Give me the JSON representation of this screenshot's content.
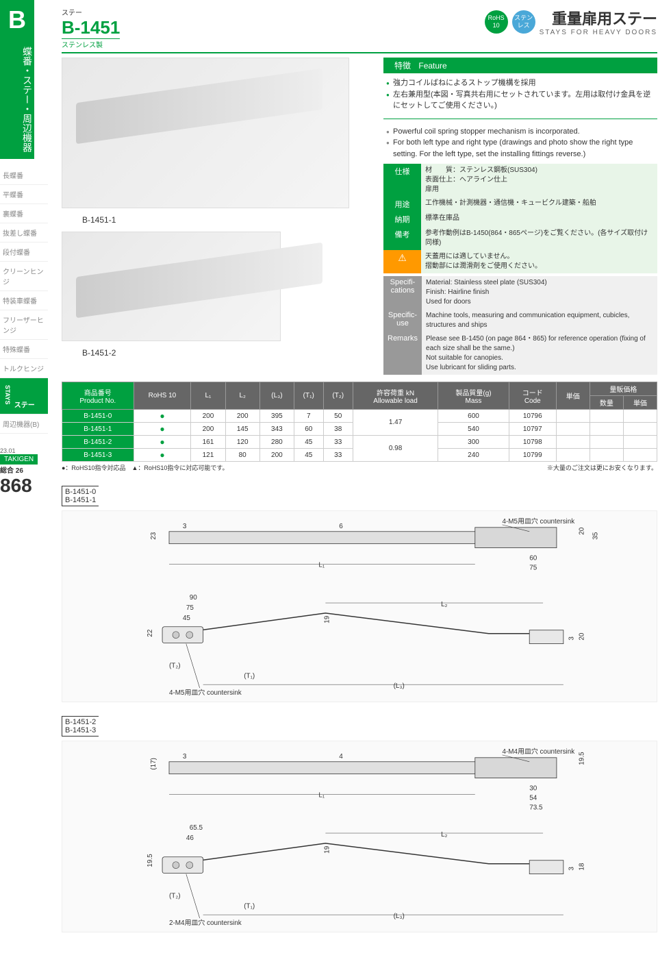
{
  "sidebar": {
    "tab": "B",
    "category_jp": "蝶番・ステー・周辺機器",
    "items": [
      "長蝶番",
      "平蝶番",
      "裏蝶番",
      "抜差し蝶番",
      "段付蝶番",
      "クリーンヒンジ",
      "特装車蝶番",
      "フリーザーヒンジ",
      "特殊蝶番",
      "トルクヒンジ",
      "ステー",
      "周辺機器(B)"
    ],
    "active_index": 10,
    "stays_en": "STAYS"
  },
  "header": {
    "small_jp": "ステー",
    "code": "B-1451",
    "material_jp": "ステンレス製",
    "badge_rohs": "RoHS 10",
    "badge_steel": "ステンレス",
    "title_jp": "重量扉用ステー",
    "title_en": "STAYS FOR HEAVY DOORS"
  },
  "feature": {
    "bar_jp": "特徴",
    "bar_en": "Feature",
    "jp": [
      "強力コイルばねによるストップ機構を採用",
      "左右兼用型(本図・写真共右用にセットされています。左用は取付け金具を逆にセットしてご使用ください。)"
    ],
    "en": [
      "Powerful coil spring stopper mechanism is incorporated.",
      "For both left type and right type (drawings and photo show the right type setting. For the left type, set the installing fittings reverse.)"
    ]
  },
  "specs_jp": {
    "rows": [
      {
        "label": "仕様",
        "text": "材　　質：ステンレス鋼板(SUS304)\n表面仕上：ヘアライン仕上\n扉用"
      },
      {
        "label": "用途",
        "text": "工作機械・計測機器・通信機・キュービクル建築・船舶"
      },
      {
        "label": "納期",
        "text": "標準在庫品"
      },
      {
        "label": "備考",
        "text": "参考作動例はB-1450(864・865ページ)をご覧ください。(各サイズ取付け同様)",
        "warn": true
      },
      {
        "label": "",
        "text": "天蓋用には適していません。\n摺動部には潤滑剤をご使用ください。",
        "warn_only": true
      }
    ]
  },
  "specs_en": {
    "rows": [
      {
        "label": "Specifi-cations",
        "text": "Material: Stainless steel plate (SUS304)\nFinish: Hairline finish\nUsed for doors"
      },
      {
        "label": "Specific-use",
        "text": "Machine tools, measuring and communication equipment, cubicles, structures and ships"
      },
      {
        "label": "Remarks",
        "text": "Please see B-1450 (on page 864・865) for reference operation (fixing of each size shall be the same.)\nNot suitable for canopies.\nUse lubricant for sliding parts.",
        "warn": true
      }
    ]
  },
  "product_labels": [
    "B-1451-1",
    "B-1451-2"
  ],
  "table": {
    "headers": [
      "商品番号\nProduct No.",
      "RoHS 10",
      "L₁",
      "L₂",
      "(L₃)",
      "(T₁)",
      "(T₂)",
      "許容荷重 kN\nAllowable load",
      "製品質量(g)\nMass",
      "コード\nCode",
      "単価",
      "数量",
      "単価"
    ],
    "group_header": "量販価格",
    "rows": [
      {
        "name": "B-1451-0",
        "rohs": "●",
        "l1": "200",
        "l2": "200",
        "l3": "395",
        "t1": "7",
        "t2": "50",
        "load": "1.47",
        "mass": "600",
        "code": "10796"
      },
      {
        "name": "B-1451-1",
        "rohs": "●",
        "l1": "200",
        "l2": "145",
        "l3": "343",
        "t1": "60",
        "t2": "38",
        "load": "",
        "mass": "540",
        "code": "10797"
      },
      {
        "name": "B-1451-2",
        "rohs": "●",
        "l1": "161",
        "l2": "120",
        "l3": "280",
        "t1": "45",
        "t2": "33",
        "load": "0.98",
        "mass": "300",
        "code": "10798"
      },
      {
        "name": "B-1451-3",
        "rohs": "●",
        "l1": "121",
        "l2": "80",
        "l3": "200",
        "t1": "45",
        "t2": "33",
        "load": "",
        "mass": "240",
        "code": "10799"
      }
    ],
    "note_left": "●：RoHS10指令対応品　▲：RoHS10指令に対応可能です。",
    "note_right": "※大量のご注文は更にお安くなります。"
  },
  "drawings": [
    {
      "labels": [
        "B-1451-0",
        "B-1451-1"
      ],
      "cs1": "4-M5用皿穴\ncountersink",
      "cs2": "4-M5用皿穴\ncountersink",
      "dims": {
        "d23": "23",
        "d3": "3",
        "d6": "6",
        "d20": "20",
        "d35": "35",
        "d60": "60",
        "d75": "75",
        "d90": "90",
        "d75b": "75",
        "d45": "45",
        "d22": "22",
        "d19": "19",
        "l1": "L₁",
        "l2": "L₂",
        "l3": "(L₃)",
        "t1": "(T₁)",
        "t2": "(T₂)",
        "d3b": "3",
        "d20b": "20"
      }
    },
    {
      "labels": [
        "B-1451-2",
        "B-1451-3"
      ],
      "cs1": "4-M4用皿穴\ncountersink",
      "cs2": "2-M4用皿穴\ncountersink",
      "dims": {
        "d17": "(17)",
        "d3": "3",
        "d4": "4",
        "d195": "19.5",
        "d30": "30",
        "d54": "54",
        "d735": "73.5",
        "d655": "65.5",
        "d46": "46",
        "d195b": "19.5",
        "d19": "19",
        "l1": "L₁",
        "l2": "L₂",
        "l3": "(L₃)",
        "t1": "(T₁)",
        "t2": "(T₂)",
        "d3b": "3",
        "d18": "18"
      }
    }
  ],
  "footer": {
    "date": "23.01",
    "brand": "TAKIGEN",
    "edition": "総合 26",
    "page": "868"
  }
}
